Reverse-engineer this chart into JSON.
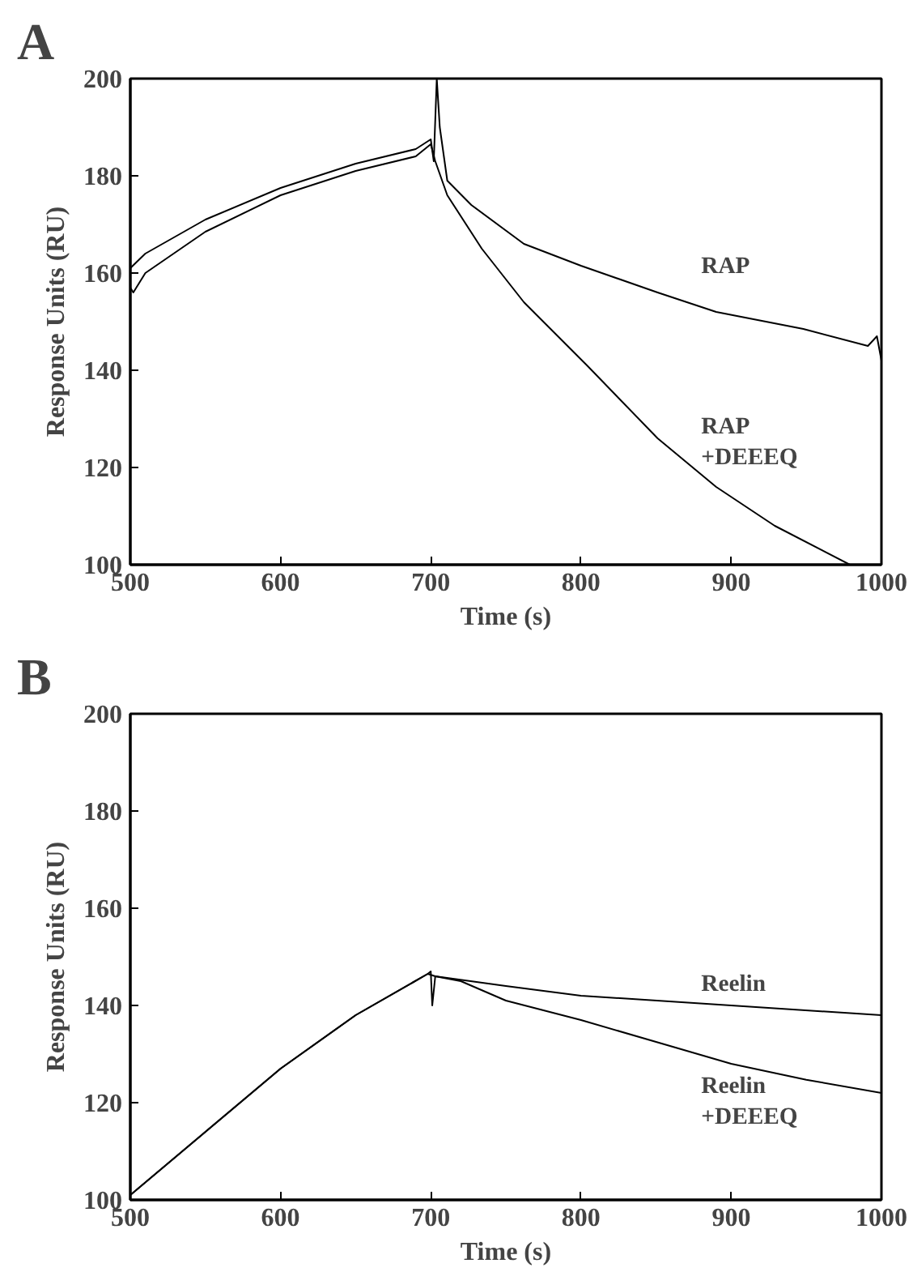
{
  "chart_data": [
    {
      "type": "line",
      "title": "A",
      "xlabel": "Time (s)",
      "ylabel": "Response Units (RU)",
      "xlim": [
        500,
        1000
      ],
      "ylim": [
        100,
        200
      ],
      "xticks": [
        500,
        600,
        700,
        800,
        900,
        1000
      ],
      "yticks": [
        100,
        120,
        140,
        160,
        180,
        200
      ],
      "grid": false,
      "series": [
        {
          "color": "#000000",
          "x": [
            500,
            510,
            550,
            600,
            650,
            690,
            700,
            702,
            704,
            706,
            711,
            727,
            762,
            800,
            851,
            890,
            948,
            991,
            997,
            1000
          ],
          "values": [
            161,
            164,
            171,
            177.5,
            182.5,
            185.5,
            187.5,
            183,
            200,
            190,
            179,
            174,
            166,
            161.5,
            156,
            152,
            148.5,
            145,
            147,
            142
          ]
        },
        {
          "color": "#000000",
          "x": [
            500,
            502,
            510,
            550,
            600,
            650,
            690,
            700,
            703,
            711,
            734,
            762,
            804,
            851,
            890,
            929,
            979
          ],
          "values": [
            157,
            156,
            160,
            168.5,
            176,
            181,
            184,
            186.5,
            183,
            176,
            165,
            154,
            141,
            126,
            116,
            108,
            100
          ]
        }
      ],
      "annotations": [
        "RAP",
        "RAP\n+DEEEQ"
      ]
    },
    {
      "type": "line",
      "title": "B",
      "xlabel": "Time (s)",
      "ylabel": "Response Units (RU)",
      "xlim": [
        500,
        1000
      ],
      "ylim": [
        100,
        200
      ],
      "xticks": [
        500,
        600,
        700,
        800,
        900,
        1000
      ],
      "yticks": [
        100,
        120,
        140,
        160,
        180,
        200
      ],
      "grid": false,
      "series": [
        {
          "color": "#000000",
          "x": [
            500,
            550,
            600,
            650,
            698,
            700,
            701,
            703,
            750,
            800,
            900,
            1000
          ],
          "values": [
            101,
            114,
            127,
            138,
            146.5,
            147,
            140,
            146,
            144,
            142,
            140,
            138
          ]
        },
        {
          "color": "#000000",
          "x": [
            500,
            550,
            600,
            650,
            698,
            703,
            720,
            750,
            800,
            850,
            900,
            950,
            1000
          ],
          "values": [
            101,
            114,
            127,
            138,
            146.5,
            146,
            145,
            141,
            137,
            132.5,
            128,
            124.7,
            122
          ]
        }
      ],
      "annotations": [
        "Reelin",
        "Reelin\n+DEEEQ"
      ]
    }
  ]
}
